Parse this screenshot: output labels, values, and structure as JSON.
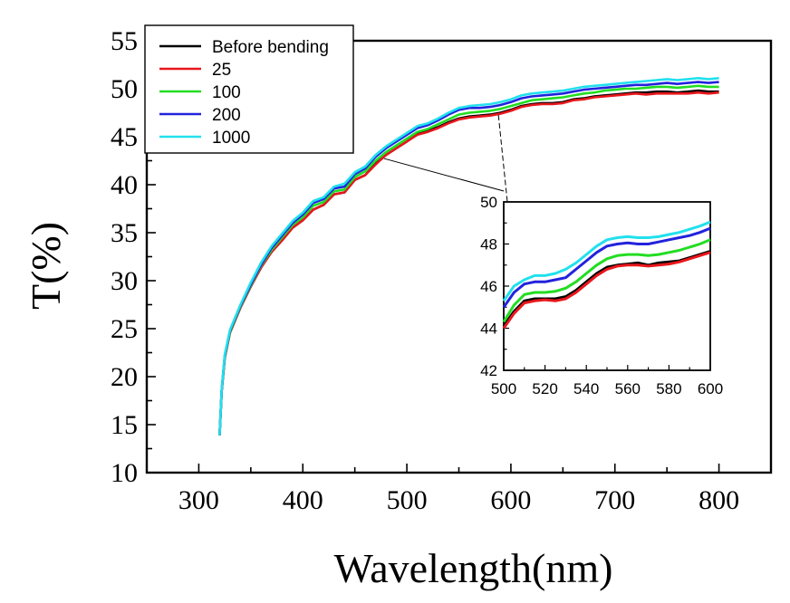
{
  "chart_data": [
    {
      "type": "line",
      "role": "main",
      "title": "",
      "xlabel": "Wavelength(nm)",
      "ylabel": "T(%)",
      "xlim": [
        250,
        850
      ],
      "ylim": [
        10,
        55
      ],
      "xticks": [
        300,
        400,
        500,
        600,
        700,
        800
      ],
      "yticks": [
        10,
        15,
        20,
        25,
        30,
        35,
        40,
        45,
        50,
        55
      ],
      "legend_position": "top-left",
      "x": [
        320,
        322,
        325,
        330,
        340,
        350,
        360,
        370,
        380,
        390,
        400,
        410,
        420,
        430,
        440,
        450,
        460,
        470,
        480,
        490,
        500,
        510,
        520,
        530,
        540,
        550,
        560,
        570,
        580,
        590,
        600,
        610,
        620,
        630,
        640,
        650,
        660,
        670,
        680,
        690,
        700,
        710,
        720,
        730,
        740,
        750,
        760,
        770,
        780,
        790,
        800
      ],
      "series": [
        {
          "name": "Before bending",
          "color": "#000000",
          "values": [
            13.9,
            18.5,
            22.0,
            24.6,
            27.2,
            29.4,
            31.4,
            33.0,
            34.2,
            35.5,
            36.3,
            37.4,
            37.9,
            39.0,
            39.2,
            40.5,
            41.0,
            42.2,
            43.1,
            43.8,
            44.5,
            45.3,
            45.6,
            46.0,
            46.5,
            46.9,
            47.1,
            47.2,
            47.3,
            47.5,
            47.8,
            48.2,
            48.4,
            48.5,
            48.5,
            48.6,
            48.9,
            49.0,
            49.2,
            49.3,
            49.4,
            49.5,
            49.6,
            49.6,
            49.7,
            49.7,
            49.6,
            49.7,
            49.8,
            49.7,
            49.7
          ]
        },
        {
          "name": "25",
          "color": "#e8171c",
          "values": [
            13.9,
            18.5,
            22.0,
            24.6,
            27.2,
            29.4,
            31.4,
            33.0,
            34.2,
            35.5,
            36.3,
            37.4,
            37.9,
            39.0,
            39.2,
            40.5,
            41.0,
            42.1,
            43.1,
            43.8,
            44.5,
            45.2,
            45.5,
            45.9,
            46.4,
            46.8,
            47.0,
            47.1,
            47.2,
            47.4,
            47.7,
            48.1,
            48.3,
            48.4,
            48.4,
            48.5,
            48.8,
            48.9,
            49.1,
            49.2,
            49.3,
            49.4,
            49.5,
            49.4,
            49.5,
            49.5,
            49.5,
            49.5,
            49.6,
            49.5,
            49.6
          ]
        },
        {
          "name": "100",
          "color": "#22dd22",
          "values": [
            13.9,
            18.6,
            22.1,
            24.7,
            27.3,
            29.5,
            31.6,
            33.2,
            34.5,
            35.8,
            36.6,
            37.8,
            38.2,
            39.3,
            39.5,
            40.8,
            41.4,
            42.5,
            43.4,
            44.1,
            44.8,
            45.5,
            45.8,
            46.3,
            46.8,
            47.3,
            47.5,
            47.6,
            47.7,
            47.9,
            48.2,
            48.5,
            48.8,
            48.9,
            49.0,
            49.1,
            49.3,
            49.5,
            49.6,
            49.8,
            49.9,
            50.0,
            50.0,
            50.1,
            50.2,
            50.2,
            50.1,
            50.2,
            50.3,
            50.2,
            50.2
          ]
        },
        {
          "name": "200",
          "color": "#2222dd",
          "values": [
            13.9,
            18.6,
            22.2,
            24.8,
            27.4,
            29.6,
            31.7,
            33.4,
            34.7,
            36.0,
            36.9,
            38.1,
            38.5,
            39.6,
            39.8,
            41.1,
            41.7,
            42.9,
            43.8,
            44.5,
            45.2,
            45.9,
            46.2,
            46.7,
            47.3,
            47.8,
            48.0,
            48.0,
            48.1,
            48.3,
            48.6,
            49.0,
            49.2,
            49.3,
            49.4,
            49.5,
            49.7,
            49.9,
            50.0,
            50.1,
            50.2,
            50.3,
            50.4,
            50.4,
            50.5,
            50.6,
            50.5,
            50.6,
            50.7,
            50.6,
            50.7
          ]
        },
        {
          "name": "1000",
          "color": "#22e0ee",
          "values": [
            13.9,
            18.7,
            22.3,
            24.9,
            27.5,
            29.8,
            31.9,
            33.6,
            34.9,
            36.2,
            37.1,
            38.3,
            38.7,
            39.8,
            40.1,
            41.3,
            41.9,
            43.1,
            44.0,
            44.7,
            45.4,
            46.1,
            46.4,
            46.9,
            47.5,
            48.0,
            48.2,
            48.3,
            48.4,
            48.6,
            48.9,
            49.3,
            49.5,
            49.6,
            49.7,
            49.8,
            50.0,
            50.2,
            50.3,
            50.4,
            50.5,
            50.6,
            50.7,
            50.8,
            50.9,
            51.0,
            50.9,
            51.0,
            51.1,
            51.0,
            51.1
          ]
        }
      ]
    },
    {
      "type": "line",
      "role": "inset-zoom",
      "title": "",
      "xlabel": "",
      "ylabel": "",
      "xlim": [
        500,
        600
      ],
      "ylim": [
        42,
        50
      ],
      "xticks": [
        500,
        520,
        540,
        560,
        580,
        600
      ],
      "yticks": [
        42,
        44,
        46,
        48,
        50
      ],
      "zoom_source_x": [
        478,
        588
      ],
      "x": [
        500,
        505,
        510,
        515,
        520,
        525,
        530,
        535,
        540,
        545,
        550,
        555,
        560,
        565,
        570,
        575,
        580,
        585,
        590,
        595,
        600
      ],
      "series": [
        {
          "name": "Before bending",
          "color": "#000000",
          "values": [
            44.1,
            44.8,
            45.3,
            45.4,
            45.4,
            45.4,
            45.5,
            45.8,
            46.2,
            46.6,
            46.9,
            47.0,
            47.05,
            47.1,
            47.0,
            47.1,
            47.15,
            47.2,
            47.35,
            47.5,
            47.65
          ]
        },
        {
          "name": "25",
          "color": "#e8171c",
          "values": [
            44.0,
            44.7,
            45.2,
            45.3,
            45.35,
            45.3,
            45.4,
            45.7,
            46.1,
            46.5,
            46.8,
            46.95,
            47.0,
            47.0,
            46.95,
            47.0,
            47.05,
            47.15,
            47.3,
            47.45,
            47.6
          ]
        },
        {
          "name": "100",
          "color": "#22dd22",
          "values": [
            44.3,
            45.1,
            45.6,
            45.7,
            45.7,
            45.75,
            45.9,
            46.2,
            46.6,
            47.0,
            47.3,
            47.45,
            47.5,
            47.5,
            47.45,
            47.5,
            47.6,
            47.7,
            47.85,
            48.0,
            48.2
          ]
        },
        {
          "name": "200",
          "color": "#2222dd",
          "values": [
            45.0,
            45.7,
            46.1,
            46.2,
            46.2,
            46.3,
            46.4,
            46.8,
            47.2,
            47.6,
            47.9,
            48.0,
            48.05,
            48.0,
            48.0,
            48.1,
            48.2,
            48.3,
            48.4,
            48.55,
            48.75
          ]
        },
        {
          "name": "1000",
          "color": "#22e0ee",
          "values": [
            45.3,
            46.0,
            46.3,
            46.5,
            46.5,
            46.6,
            46.8,
            47.1,
            47.5,
            47.9,
            48.2,
            48.3,
            48.35,
            48.3,
            48.3,
            48.35,
            48.45,
            48.55,
            48.7,
            48.85,
            49.05
          ]
        }
      ]
    }
  ]
}
